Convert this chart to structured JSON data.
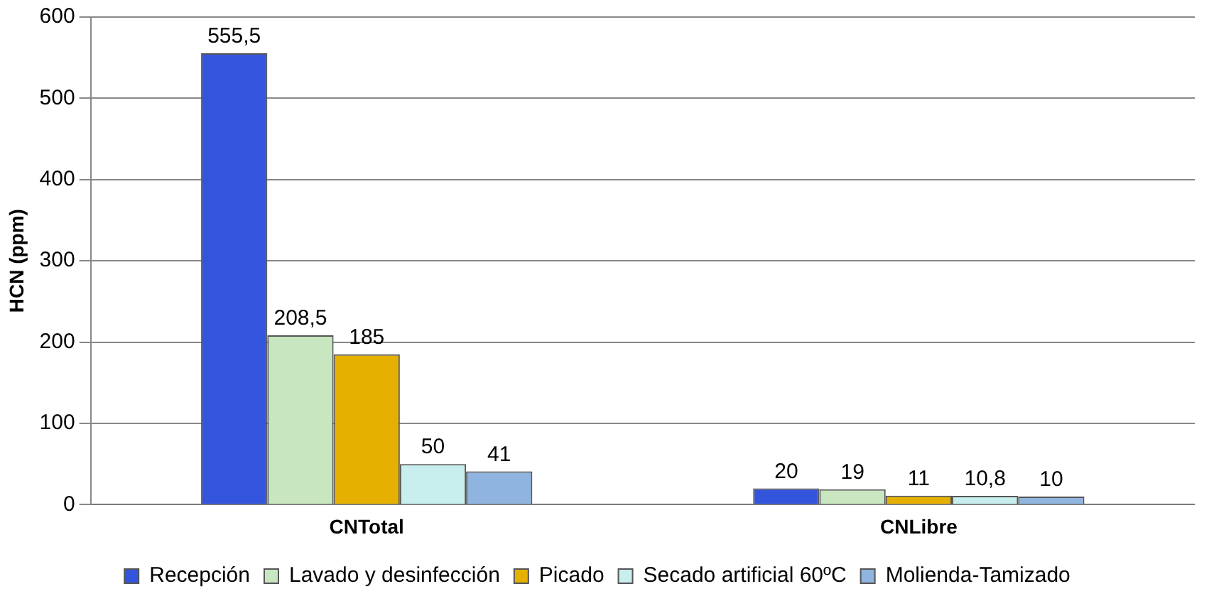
{
  "chart_data": {
    "type": "bar",
    "ylabel": "HCN (ppm)",
    "categories": [
      "CNTotal",
      "CNLibre"
    ],
    "series": [
      {
        "name": "Recepción",
        "color": "#3355dd",
        "values": [
          555.5,
          20
        ],
        "value_labels": [
          "555,5",
          "20"
        ]
      },
      {
        "name": "Lavado y desinfección",
        "color": "#c8e6c0",
        "values": [
          208.5,
          19
        ],
        "value_labels": [
          "208,5",
          "19"
        ]
      },
      {
        "name": "Picado",
        "color": "#e6b000",
        "values": [
          185,
          11
        ],
        "value_labels": [
          "185",
          "11"
        ]
      },
      {
        "name": "Secado artificial 60ºC",
        "color": "#c8eeee",
        "values": [
          50,
          10.8
        ],
        "value_labels": [
          "50",
          "10,8"
        ]
      },
      {
        "name": "Molienda-Tamizado",
        "color": "#8fb4e0",
        "values": [
          41,
          10
        ],
        "value_labels": [
          "41",
          "10"
        ]
      }
    ],
    "ylim": [
      0,
      600
    ],
    "yticks": [
      0,
      100,
      200,
      300,
      400,
      500,
      600
    ],
    "grid": "y",
    "legend": "bottom"
  }
}
